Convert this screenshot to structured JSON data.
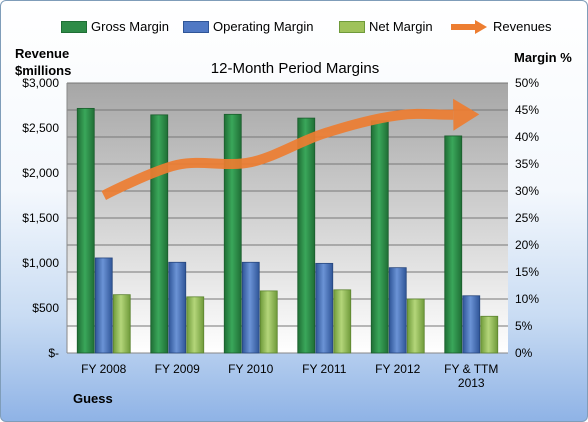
{
  "chart_data": {
    "type": "bar",
    "title": "12-Month Period Margins",
    "categories": [
      "FY 2008",
      "FY 2009",
      "FY 2010",
      "FY 2011",
      "FY 2012",
      "FY & TTM 2013"
    ],
    "series": [
      {
        "name": "Gross Margin",
        "axis": "right",
        "color": "#2e8b47",
        "values": [
          45.3,
          44.1,
          44.2,
          43.5,
          43.0,
          40.2
        ]
      },
      {
        "name": "Operating Margin",
        "axis": "right",
        "color": "#4f78c4",
        "values": [
          17.6,
          16.8,
          16.8,
          16.6,
          15.8,
          10.6
        ]
      },
      {
        "name": "Net Margin",
        "axis": "right",
        "color": "#9fc25a",
        "values": [
          10.8,
          10.4,
          11.5,
          11.7,
          10.0,
          6.8
        ]
      },
      {
        "name": "Revenues",
        "type": "line",
        "axis": "left",
        "color": "#ed7d31",
        "values": [
          1750,
          2090,
          2120,
          2440,
          2640,
          2650
        ]
      }
    ],
    "ylabel_left": "Revenue $millions",
    "ylabel_right": "Margin %",
    "ylim_left": [
      0,
      3000
    ],
    "ylim_right": [
      0,
      50
    ],
    "yticks_left": [
      "$-",
      "$500",
      "$1,000",
      "$1,500",
      "$2,000",
      "$2,500",
      "$3,000"
    ],
    "yticks_right": [
      "0%",
      "5%",
      "10%",
      "15%",
      "20%",
      "25%",
      "30%",
      "35%",
      "40%",
      "45%",
      "50%"
    ],
    "xtick_labels": [
      [
        "FY 2008"
      ],
      [
        "FY 2009"
      ],
      [
        "FY 2010"
      ],
      [
        "FY 2011"
      ],
      [
        "FY 2012"
      ],
      [
        "FY & TTM",
        "2013"
      ]
    ],
    "grid": true,
    "legend": "top"
  },
  "axis_titles": {
    "left_line1": "Revenue",
    "left_line2": "$millions",
    "right": "Margin %"
  },
  "company": "Guess",
  "colors": {
    "plot_bg_top": "#a6a6a6",
    "plot_bg_bottom": "#ffffff",
    "gridline": "#777777"
  }
}
